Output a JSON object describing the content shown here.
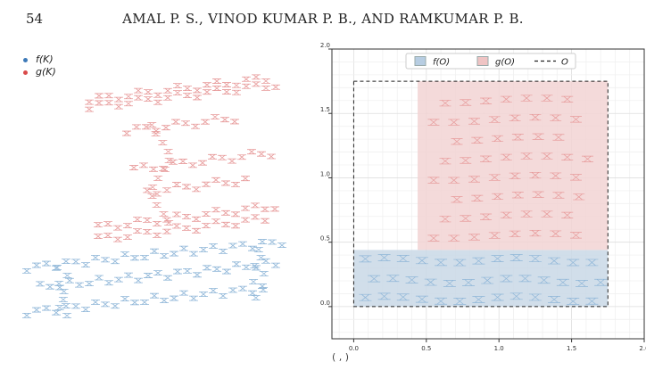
{
  "page": {
    "number": "54",
    "running_head": "AMAL P. S., VINOD KUMAR P. B., AND RAMKUMAR P. B.",
    "caption_fragment": "( , )"
  },
  "left_figure": {
    "legend": [
      {
        "label": "f(K)",
        "color": "#3d7ab8"
      },
      {
        "label": "g(K)",
        "color": "#d94a4a"
      }
    ],
    "colors": {
      "f": "#8fb6d8",
      "g": "#e79a9a"
    }
  },
  "chart_data": {
    "type": "scatter",
    "xlim": [
      -0.15,
      2.0
    ],
    "ylim": [
      -0.25,
      2.0
    ],
    "x_ticks": [
      "0.0",
      "0.5",
      "1.0",
      "1.5",
      "2.0"
    ],
    "y_ticks": [
      "0.0",
      "0.5",
      "1.0",
      "1.5",
      "2.0"
    ],
    "grid": true,
    "legend_position": "top-center",
    "legend": [
      {
        "label": "f(O)",
        "kind": "patch",
        "color": "#b7cde2"
      },
      {
        "label": "g(O)",
        "kind": "patch",
        "color": "#efc4c4"
      },
      {
        "label": "O",
        "kind": "dashed-line",
        "color": "#222222"
      }
    ],
    "regions": [
      {
        "name": "f(O)",
        "x": [
          0.0,
          1.75
        ],
        "y": [
          0.0,
          0.44
        ],
        "color": "#c9d8e6"
      },
      {
        "name": "g(O)",
        "x": [
          0.44,
          1.75
        ],
        "y": [
          0.44,
          1.75
        ],
        "color": "#f2d4d4"
      },
      {
        "name": "O",
        "x": [
          0.0,
          1.75
        ],
        "y": [
          0.0,
          1.75
        ],
        "style": "dashed"
      }
    ],
    "series": [
      {
        "name": "f(K)",
        "color": "#8fb6d8"
      },
      {
        "name": "g(K)",
        "color": "#e79a9a"
      }
    ]
  }
}
